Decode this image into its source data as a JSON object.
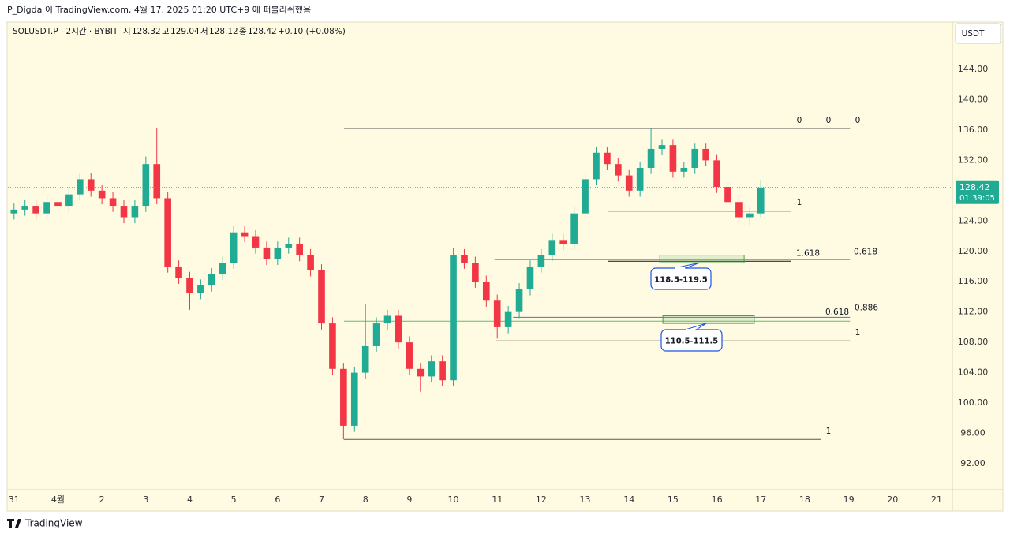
{
  "page": {
    "credit": "P_Digda 이 TradingView.com, 4월 17, 2025 01:20 UTC+9 에 퍼블리쉬했음",
    "footer": "TradingView"
  },
  "chart_data": {
    "type": "candlestick",
    "symbol": "SOLUSDT.P · 2시간 · BYBIT",
    "ohlc_labels": [
      "시",
      "고",
      "저",
      "종"
    ],
    "ohlc": [
      128.32,
      129.04,
      128.12,
      128.42
    ],
    "change": "+0.10 (+0.08%)",
    "currency": "USDT",
    "last_price": 128.42,
    "countdown": "01:39:05",
    "up_color": "#22ab94",
    "down_color": "#f23645",
    "ylim": [
      88.67,
      150.03
    ],
    "yticks": [
      {
        "value": 92,
        "label": "92.00"
      },
      {
        "value": 96,
        "label": "96.00"
      },
      {
        "value": 100,
        "label": "100.00"
      },
      {
        "value": 104,
        "label": "104.00"
      },
      {
        "value": 108,
        "label": "108.00"
      },
      {
        "value": 112,
        "label": "112.00"
      },
      {
        "value": 116,
        "label": "116.00"
      },
      {
        "value": 120,
        "label": "120.00"
      },
      {
        "value": 124,
        "label": "124.00"
      },
      {
        "value": 128,
        "label": "128.00"
      },
      {
        "value": 132,
        "label": "132.00"
      },
      {
        "value": 136,
        "label": "136.00"
      },
      {
        "value": 140,
        "label": "140.00"
      },
      {
        "value": 144,
        "label": "144.00"
      }
    ],
    "xlim": [
      -0.14,
      21.36
    ],
    "xticks": [
      {
        "value": 0,
        "label": "31"
      },
      {
        "value": 1,
        "label": "4월"
      },
      {
        "value": 2,
        "label": "2"
      },
      {
        "value": 3,
        "label": "3"
      },
      {
        "value": 4,
        "label": "4"
      },
      {
        "value": 5,
        "label": "5"
      },
      {
        "value": 6,
        "label": "6"
      },
      {
        "value": 7,
        "label": "7"
      },
      {
        "value": 8,
        "label": "8"
      },
      {
        "value": 9,
        "label": "9"
      },
      {
        "value": 10,
        "label": "10"
      },
      {
        "value": 11,
        "label": "11"
      },
      {
        "value": 12,
        "label": "12"
      },
      {
        "value": 13,
        "label": "13"
      },
      {
        "value": 14,
        "label": "14"
      },
      {
        "value": 15,
        "label": "15"
      },
      {
        "value": 16,
        "label": "16"
      },
      {
        "value": 17,
        "label": "17"
      },
      {
        "value": 18,
        "label": "18"
      },
      {
        "value": 19,
        "label": "19"
      },
      {
        "value": 20,
        "label": "20"
      },
      {
        "value": 21,
        "label": "21"
      }
    ],
    "x": [
      0,
      0.25,
      0.5,
      0.75,
      1,
      1.25,
      1.5,
      1.75,
      2,
      2.25,
      2.5,
      2.75,
      3,
      3.25,
      3.5,
      3.75,
      4,
      4.25,
      4.5,
      4.75,
      5,
      5.25,
      5.5,
      5.75,
      6,
      6.25,
      6.5,
      6.75,
      7,
      7.25,
      7.5,
      7.75,
      8,
      8.25,
      8.5,
      8.75,
      9,
      9.25,
      9.5,
      9.75,
      10,
      10.25,
      10.5,
      10.75,
      11,
      11.25,
      11.5,
      11.75,
      12,
      12.25,
      12.5,
      12.75,
      13,
      13.25,
      13.5,
      13.75,
      14,
      14.25,
      14.5,
      14.75,
      15,
      15.25,
      15.5,
      15.75,
      16,
      16.25,
      16.5,
      16.75,
      17
    ],
    "open": [
      125,
      125.5,
      126,
      125,
      126.5,
      126,
      127.5,
      129.5,
      128,
      127,
      126,
      124.5,
      126,
      131.5,
      127,
      118,
      116.5,
      114.5,
      115.5,
      117,
      118.5,
      122.5,
      122,
      120.5,
      119,
      120.5,
      121,
      119.5,
      117.5,
      110.5,
      104.5,
      97,
      104,
      107.5,
      110.5,
      111.5,
      108,
      104.5,
      103.5,
      105.5,
      103,
      119.5,
      118.5,
      116,
      113.5,
      110,
      112,
      115,
      118,
      119.5,
      121.5,
      121,
      125,
      129.5,
      133,
      131.5,
      130,
      128,
      131,
      133.5,
      134,
      130.5,
      131,
      133.5,
      132,
      128.5,
      126.5,
      124.5,
      125
    ],
    "high": [
      126.3,
      126.8,
      126.8,
      127.3,
      127.3,
      128.3,
      130.3,
      130.3,
      128.8,
      127.8,
      126.8,
      126.8,
      132.5,
      136.3,
      127.8,
      118.8,
      117.3,
      116.3,
      117.8,
      119.3,
      123.3,
      123.3,
      122.8,
      121.3,
      121.3,
      121.8,
      121.8,
      120.3,
      118.3,
      111.3,
      105.3,
      104.8,
      113.1,
      111.3,
      112.3,
      112.3,
      108.8,
      105.3,
      106.3,
      106.3,
      120.5,
      120.3,
      119.3,
      116.8,
      114.3,
      112.8,
      115.8,
      118.8,
      120.3,
      122.3,
      122.3,
      125.8,
      130.3,
      133.8,
      133.8,
      132.3,
      130.8,
      131.8,
      136.3,
      134.8,
      134.8,
      131.8,
      134.3,
      134.3,
      132.8,
      129.3,
      127.3,
      125.8,
      129.4
    ],
    "low": [
      124.2,
      124.7,
      124.2,
      124.2,
      125.2,
      125.2,
      126.7,
      127.2,
      126.2,
      125.2,
      123.7,
      123.7,
      125.2,
      126.2,
      117.2,
      115.7,
      112.3,
      113.7,
      114.7,
      116.2,
      117.7,
      121.2,
      119.7,
      118.2,
      118.2,
      119.7,
      118.7,
      116.7,
      109.7,
      103.7,
      95.2,
      96.2,
      103.2,
      106.7,
      109.7,
      107.2,
      103.7,
      101.5,
      102.7,
      102.2,
      102.2,
      117.7,
      115.2,
      112.7,
      108.5,
      109.2,
      111.2,
      114.2,
      117.2,
      118.7,
      120.2,
      120.2,
      124.2,
      128.7,
      130.7,
      129.2,
      127.2,
      127.2,
      130.2,
      132.7,
      129.7,
      129.7,
      130.2,
      131.2,
      127.7,
      125.7,
      123.7,
      123.5,
      124.5
    ],
    "close": [
      125.5,
      126,
      125,
      126.5,
      126,
      127.5,
      129.5,
      128,
      127,
      126,
      124.5,
      126,
      131.5,
      127,
      118,
      116.5,
      114.5,
      115.5,
      117,
      118.5,
      122.5,
      122,
      120.5,
      119,
      120.5,
      121,
      119.5,
      117.5,
      110.5,
      104.5,
      97,
      104,
      107.5,
      110.5,
      111.5,
      108,
      104.5,
      103.5,
      105.5,
      103,
      119.5,
      118.5,
      116,
      113.5,
      110,
      112,
      115,
      118,
      119.5,
      121.5,
      121,
      125,
      129.5,
      133,
      131.5,
      130,
      128,
      131,
      133.5,
      134,
      130.5,
      131,
      133.5,
      132,
      128.5,
      126.5,
      124.5,
      125,
      128.42
    ],
    "levels": [
      {
        "price": 136.2,
        "from": 7.51,
        "to": 19.03,
        "color": "#555555",
        "labels": [
          "0",
          "0",
          "0"
        ]
      },
      {
        "price": 125.3,
        "from": 13.51,
        "to": 17.68,
        "color": "#333333",
        "labels": [
          "1"
        ]
      },
      {
        "price": 118.7,
        "from": 13.51,
        "to": 17.68,
        "color": "#111111",
        "labels": [
          "1.618"
        ]
      },
      {
        "price": 118.9,
        "from": 10.94,
        "to": 19.03,
        "color": "#66bb6a",
        "labels": [
          "0.618"
        ]
      },
      {
        "price": 110.8,
        "from": 7.51,
        "to": 19.03,
        "color": "#66bb6a",
        "labels": [
          "0.618"
        ]
      },
      {
        "price": 111.3,
        "from": 11.36,
        "to": 19.03,
        "color": "#5c6bc0",
        "labels": [
          "0.886"
        ]
      },
      {
        "price": 108.2,
        "from": 10.96,
        "to": 19.03,
        "color": "#555555",
        "labels": [
          "1"
        ]
      },
      {
        "price": 95.2,
        "from": 7.51,
        "to": 18.36,
        "color": "#555555",
        "labels": [
          "1"
        ]
      }
    ],
    "zones": [
      {
        "low": 118.5,
        "high": 119.5,
        "from": 14.7,
        "to": 16.62,
        "label": "118.5-119.5"
      },
      {
        "low": 110.5,
        "high": 111.5,
        "from": 14.77,
        "to": 16.85,
        "label": "110.5-111.5"
      }
    ]
  }
}
